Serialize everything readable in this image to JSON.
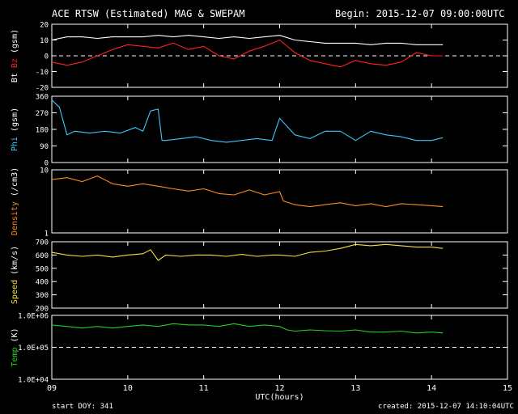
{
  "header": {
    "title": "ACE RTSW (Estimated) MAG & SWEPAM",
    "begin": "Begin: 2015-12-07 09:00:00UTC"
  },
  "footer": {
    "start_doy": "start DOY: 341",
    "created": "created: 2015-12-07 14:10:04UTC"
  },
  "colors": {
    "background": "#000000",
    "axes": "#ffffff",
    "bt": "#ffffff",
    "bz": "#ff2020",
    "phi": "#3cc8ff",
    "density": "#ff8c1a",
    "speed": "#f0e040",
    "temp": "#20d020"
  },
  "chart_data": {
    "type": "line",
    "xlabel": "UTC(hours)",
    "xlim": [
      9,
      15
    ],
    "x_ticks": [
      "09",
      "10",
      "11",
      "12",
      "13",
      "14",
      "15"
    ],
    "panels": [
      {
        "id": "mag",
        "ylabel_parts": [
          {
            "text": "Bt",
            "color": "#ffffff"
          },
          {
            "text": " ",
            "color": "#ffffff"
          },
          {
            "text": "Bz",
            "color": "#ff2020"
          },
          {
            "text": " (gsm)",
            "color": "#ffffff"
          }
        ],
        "scale": "linear",
        "ylim": [
          -20,
          20
        ],
        "y_ticks": [
          20,
          10,
          0,
          -10,
          -20
        ],
        "y_tick_labels": [
          "20",
          "10",
          "0",
          "-10",
          "-20"
        ],
        "ref_line": 0,
        "series": [
          {
            "name": "Bt",
            "color": "#ffffff",
            "x": [
              9.0,
              9.2,
              9.4,
              9.6,
              9.8,
              10.0,
              10.2,
              10.4,
              10.6,
              10.8,
              11.0,
              11.2,
              11.4,
              11.6,
              11.8,
              12.0,
              12.2,
              12.4,
              12.6,
              12.8,
              13.0,
              13.2,
              13.4,
              13.6,
              13.8,
              14.0,
              14.15
            ],
            "y": [
              10,
              12,
              12,
              11,
              12,
              12,
              12,
              13,
              12,
              13,
              12,
              11,
              12,
              11,
              12,
              13,
              10,
              9,
              8,
              8,
              8,
              7,
              8,
              8,
              7,
              7,
              7
            ]
          },
          {
            "name": "Bz",
            "color": "#ff2020",
            "x": [
              9.0,
              9.2,
              9.4,
              9.6,
              9.8,
              10.0,
              10.2,
              10.4,
              10.6,
              10.8,
              11.0,
              11.2,
              11.4,
              11.6,
              11.8,
              12.0,
              12.2,
              12.4,
              12.6,
              12.8,
              13.0,
              13.2,
              13.4,
              13.6,
              13.8,
              14.0,
              14.15
            ],
            "y": [
              -4,
              -6,
              -4,
              0,
              4,
              7,
              6,
              5,
              8,
              4,
              6,
              0,
              -2,
              3,
              6,
              10,
              2,
              -3,
              -5,
              -7,
              -3,
              -5,
              -6,
              -4,
              2,
              0,
              0
            ]
          }
        ]
      },
      {
        "id": "phi",
        "ylabel_parts": [
          {
            "text": "Phi",
            "color": "#3cc8ff"
          },
          {
            "text": " (gsm)",
            "color": "#ffffff"
          }
        ],
        "scale": "linear",
        "ylim": [
          0,
          360
        ],
        "y_ticks": [
          360,
          270,
          180,
          90,
          0
        ],
        "y_tick_labels": [
          "360",
          "270",
          "180",
          "90",
          "0"
        ],
        "series": [
          {
            "name": "Phi",
            "color": "#3cc8ff",
            "x": [
              9.0,
              9.1,
              9.2,
              9.3,
              9.5,
              9.7,
              9.9,
              10.1,
              10.2,
              10.3,
              10.4,
              10.45,
              10.5,
              10.7,
              10.9,
              11.1,
              11.3,
              11.5,
              11.7,
              11.9,
              12.0,
              12.2,
              12.4,
              12.6,
              12.8,
              13.0,
              13.2,
              13.4,
              13.6,
              13.8,
              14.0,
              14.15
            ],
            "y": [
              340,
              300,
              150,
              170,
              160,
              170,
              160,
              190,
              170,
              280,
              290,
              120,
              120,
              130,
              140,
              120,
              110,
              120,
              130,
              120,
              240,
              150,
              130,
              170,
              170,
              120,
              170,
              150,
              140,
              120,
              120,
              135
            ]
          }
        ]
      },
      {
        "id": "density",
        "ylabel_parts": [
          {
            "text": "Density",
            "color": "#ff8c1a"
          },
          {
            "text": " (/cm3)",
            "color": "#ffffff"
          }
        ],
        "scale": "log",
        "ylim": [
          1,
          10
        ],
        "y_ticks": [
          10,
          1
        ],
        "y_tick_labels": [
          "10",
          "1"
        ],
        "series": [
          {
            "name": "Density",
            "color": "#ff8c1a",
            "x": [
              9.0,
              9.2,
              9.4,
              9.6,
              9.8,
              10.0,
              10.2,
              10.4,
              10.6,
              10.8,
              11.0,
              11.2,
              11.4,
              11.6,
              11.8,
              12.0,
              12.05,
              12.2,
              12.4,
              12.6,
              12.8,
              13.0,
              13.2,
              13.4,
              13.6,
              13.8,
              14.0,
              14.15
            ],
            "y": [
              7.0,
              7.5,
              6.5,
              8.0,
              6.0,
              5.5,
              6.0,
              5.5,
              5.0,
              4.6,
              5.0,
              4.2,
              4.0,
              4.8,
              4.0,
              4.5,
              3.2,
              2.8,
              2.6,
              2.8,
              3.0,
              2.7,
              2.9,
              2.6,
              2.9,
              2.8,
              2.7,
              2.6
            ]
          }
        ]
      },
      {
        "id": "speed",
        "ylabel_parts": [
          {
            "text": "Speed",
            "color": "#f0e040"
          },
          {
            "text": " (km/s)",
            "color": "#ffffff"
          }
        ],
        "scale": "linear",
        "ylim": [
          200,
          700
        ],
        "y_ticks": [
          700,
          600,
          500,
          400,
          300,
          200
        ],
        "y_tick_labels": [
          "700",
          "600",
          "500",
          "400",
          "300",
          "200"
        ],
        "series": [
          {
            "name": "Speed",
            "color": "#f0e040",
            "x": [
              9.0,
              9.2,
              9.4,
              9.6,
              9.8,
              10.0,
              10.2,
              10.3,
              10.4,
              10.5,
              10.7,
              10.9,
              11.1,
              11.3,
              11.5,
              11.7,
              11.9,
              12.0,
              12.2,
              12.4,
              12.6,
              12.8,
              13.0,
              13.2,
              13.4,
              13.6,
              13.8,
              14.0,
              14.15
            ],
            "y": [
              620,
              600,
              590,
              600,
              585,
              600,
              610,
              640,
              560,
              600,
              590,
              600,
              600,
              590,
              605,
              590,
              600,
              600,
              590,
              620,
              630,
              650,
              680,
              670,
              680,
              670,
              660,
              660,
              650
            ]
          }
        ]
      },
      {
        "id": "temp",
        "ylabel_parts": [
          {
            "text": "Temp",
            "color": "#20d020"
          },
          {
            "text": " (K)",
            "color": "#ffffff"
          }
        ],
        "scale": "log",
        "ylim": [
          10000,
          1000000
        ],
        "y_ticks": [
          1000000,
          100000,
          10000
        ],
        "y_tick_labels": [
          "1.0E+06",
          "1.0E+05",
          "1.0E+04"
        ],
        "ref_line": 100000,
        "series": [
          {
            "name": "Temp",
            "color": "#20d020",
            "x": [
              9.0,
              9.2,
              9.4,
              9.6,
              9.8,
              10.0,
              10.2,
              10.4,
              10.6,
              10.8,
              11.0,
              11.2,
              11.4,
              11.6,
              11.8,
              12.0,
              12.1,
              12.2,
              12.4,
              12.6,
              12.8,
              13.0,
              13.2,
              13.4,
              13.6,
              13.8,
              14.0,
              14.15
            ],
            "y": [
              500000,
              450000,
              400000,
              450000,
              400000,
              450000,
              500000,
              450000,
              550000,
              500000,
              500000,
              450000,
              550000,
              450000,
              500000,
              450000,
              350000,
              320000,
              350000,
              330000,
              320000,
              350000,
              300000,
              300000,
              320000,
              280000,
              300000,
              280000
            ]
          }
        ]
      }
    ]
  }
}
